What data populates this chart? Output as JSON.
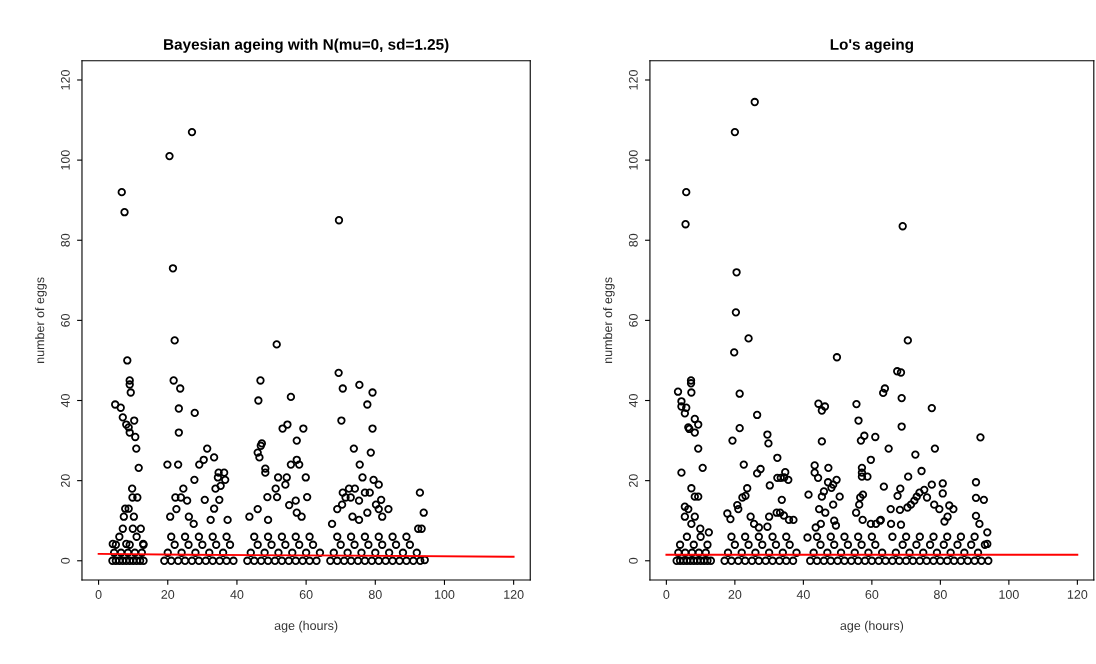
{
  "chart_data": [
    {
      "type": "scatter",
      "title": "Bayesian ageing with N(mu=0, sd=1.25)",
      "xlabel": "age (hours)",
      "ylabel": "number of eggs",
      "xlim": [
        -4.8,
        124.8
      ],
      "ylim": [
        -4.8,
        124.8
      ],
      "xticks": [
        0,
        20,
        40,
        60,
        80,
        100,
        120
      ],
      "yticks": [
        0,
        20,
        40,
        60,
        80,
        100,
        120
      ],
      "grid": false,
      "series": [
        {
          "marker": "circle",
          "color": "#000000",
          "x": [
            6.7,
            7.5,
            20.5,
            21.5,
            22,
            27,
            69.5,
            51.5,
            8.3,
            9,
            9,
            9.3,
            4.8,
            6.4,
            7,
            8,
            8.7,
            9,
            10.3,
            10.6,
            10.9,
            11.6,
            9.7,
            9.8,
            11.2,
            7.7,
            8.7,
            7.3,
            10.2,
            7,
            9.9,
            12.2,
            4.1,
            8,
            12.9,
            21.7,
            23.6,
            23.2,
            23.2,
            27.8,
            19.9,
            23,
            31.4,
            30.4,
            29.1,
            33.4,
            24.5,
            22.2,
            23.8,
            22.5,
            25.6,
            26.1,
            20.7,
            27.7,
            34.7,
            36.3,
            34.5,
            36.6,
            33.8,
            35.3,
            30.7,
            34.9,
            33.4,
            37.3,
            32.4,
            27.5,
            46.2,
            46.8,
            46,
            46.9,
            47.2,
            46.5,
            48.2,
            48.2,
            55.6,
            53.2,
            54.6,
            59.2,
            57.3,
            55.6,
            58,
            57.3,
            51.9,
            54.4,
            54,
            59.9,
            51.2,
            48.8,
            51.6,
            60.3,
            55.1,
            57,
            43.6,
            46,
            49,
            57.3,
            58.7,
            69.4,
            70.6,
            70.2,
            75.4,
            79.2,
            77.7,
            79.2,
            73.8,
            78.7,
            75.5,
            76.3,
            79.5,
            81,
            70.6,
            72.4,
            74.1,
            77,
            78.4,
            71.4,
            72.9,
            75.3,
            81.7,
            83.8,
            81,
            80.2,
            69,
            70.4,
            73.4,
            77.7,
            82,
            67.5,
            75.3,
            92.9,
            94,
            92.4,
            93.4,
            94.3,
            4,
            5,
            6,
            7,
            8,
            9,
            10,
            11,
            12,
            13,
            19,
            21,
            23,
            25,
            27,
            29,
            31,
            33,
            35,
            37,
            39,
            43,
            45,
            47,
            49,
            51,
            53,
            55,
            57,
            59,
            61,
            63,
            67,
            69,
            71,
            73,
            75,
            77,
            79,
            81,
            83,
            85,
            87,
            89,
            91,
            93,
            4.5,
            6.5,
            8.5,
            10.5,
            12.5,
            20,
            24,
            28,
            32,
            36,
            44,
            48,
            52,
            56,
            60,
            64,
            68,
            72,
            76,
            80,
            84,
            88,
            92,
            5,
            9,
            13,
            22,
            26,
            30,
            34,
            38,
            46,
            50,
            54,
            58,
            62,
            70,
            74,
            78,
            82,
            86,
            90,
            6,
            11,
            21,
            25,
            29,
            33,
            37,
            45,
            49,
            53,
            57,
            61,
            69,
            73,
            77,
            81,
            85,
            89
          ],
          "values": [
            92,
            87,
            101,
            73,
            55,
            107,
            85,
            54,
            50,
            45,
            44,
            42,
            39,
            38.2,
            35.8,
            34,
            33.3,
            32,
            35,
            30.9,
            28,
            23.2,
            18,
            15.8,
            15.8,
            13,
            13,
            11,
            11,
            8,
            8,
            8,
            4.2,
            4.2,
            4.2,
            45,
            43,
            38,
            32,
            36.9,
            24,
            24,
            28,
            25.2,
            24,
            25.8,
            18,
            15.8,
            15.8,
            12.9,
            15,
            11,
            11,
            20.2,
            22,
            22,
            20.8,
            20.2,
            18,
            18.7,
            15.2,
            15.2,
            13,
            10.2,
            10.2,
            9.2,
            40,
            45,
            27,
            28.7,
            29.3,
            25.8,
            23,
            22,
            40.9,
            33,
            34,
            33,
            30,
            24,
            24,
            25.2,
            20.8,
            20.8,
            19,
            20.8,
            18,
            15.9,
            15.9,
            15.9,
            13.9,
            15,
            11,
            12.9,
            10.2,
            12,
            11,
            46.9,
            43,
            35,
            43.9,
            42,
            39,
            33,
            28,
            27,
            24,
            20.8,
            20.2,
            19,
            17,
            18,
            18,
            17,
            17,
            15.8,
            15.8,
            15,
            15.2,
            12.9,
            12.9,
            14,
            12.9,
            14,
            11,
            12,
            11,
            9.2,
            10.2,
            17,
            12,
            8,
            8,
            0.2,
            0,
            0,
            0,
            0,
            0,
            0,
            0,
            0,
            0,
            0,
            0,
            0,
            0,
            0,
            0,
            0,
            0,
            0,
            0,
            0,
            0,
            0,
            0,
            0,
            0,
            0,
            0,
            0,
            0,
            0,
            0,
            0,
            0,
            0,
            0,
            0,
            0,
            0,
            0,
            0,
            0,
            0,
            0,
            0,
            0,
            0,
            2,
            2,
            2,
            2,
            2,
            2,
            2,
            2,
            2,
            2,
            2,
            2,
            2,
            2,
            2,
            2,
            2,
            2,
            2,
            2,
            2,
            2,
            2,
            4,
            4,
            4,
            4,
            4,
            4,
            4,
            4,
            4,
            4,
            4,
            4,
            4,
            4,
            4,
            4,
            4,
            4,
            4,
            6,
            6,
            6,
            6,
            6,
            6,
            6,
            6,
            6,
            6,
            6,
            6,
            6,
            6,
            6,
            6,
            6,
            6
          ]
        },
        {
          "type": "line",
          "marker": "none",
          "color": "#ff0000",
          "x": [
            0,
            26,
            74,
            120
          ],
          "values": [
            1.7,
            1.5,
            1.3,
            1.0
          ]
        }
      ]
    },
    {
      "type": "scatter",
      "title": "Lo's ageing",
      "xlabel": "age (hours)",
      "ylabel": "number of eggs",
      "xlim": [
        -4.8,
        124.8
      ],
      "ylim": [
        -4.8,
        124.8
      ],
      "xticks": [
        0,
        20,
        40,
        60,
        80,
        100,
        120
      ],
      "yticks": [
        0,
        20,
        40,
        60,
        80,
        100,
        120
      ],
      "grid": false,
      "series": [
        {
          "marker": "circle",
          "color": "#000000",
          "x": [
            5.8,
            5.6,
            20,
            25.8,
            20.5,
            20.3,
            19.8,
            24,
            69,
            70.5,
            49.8,
            68.5,
            3.4,
            7.2,
            7.2,
            7.3,
            4.4,
            4.4,
            5.8,
            5.4,
            8.3,
            9.3,
            6.4,
            6.7,
            8.3,
            9.3,
            10.6,
            4.4,
            7.3,
            8.3,
            9.3,
            5.4,
            6.4,
            5.4,
            8.3,
            7.3,
            9.9,
            12.4,
            21.4,
            21.4,
            26.5,
            19.3,
            22.6,
            26.5,
            27.5,
            20.7,
            22.2,
            23.1,
            23.6,
            21,
            17.8,
            18.7,
            24.6,
            25.6,
            27,
            29.5,
            29.8,
            32.4,
            30.2,
            32.4,
            33.4,
            34.7,
            34.4,
            35.6,
            33.7,
            32.2,
            33.2,
            30,
            29.5,
            34.3,
            35.8,
            37.1,
            44.4,
            45.4,
            46.3,
            45.4,
            43.3,
            43.3,
            44.3,
            47.3,
            41.5,
            45.4,
            46,
            47.2,
            48.2,
            48.7,
            49.7,
            50.6,
            44.6,
            48.7,
            46.4,
            45.1,
            49,
            49.5,
            41.2,
            43.6,
            55.5,
            56.1,
            57.8,
            56.8,
            61,
            59.7,
            57.1,
            57.1,
            57.1,
            58.7,
            56.6,
            57.4,
            56.3,
            55.4,
            57.3,
            59.7,
            61.2,
            62.6,
            63.3,
            63.8,
            67.4,
            68.7,
            68.7,
            64.9,
            72.7,
            70.6,
            74.5,
            63.5,
            67.5,
            68.3,
            65.5,
            68.2,
            70.4,
            71.4,
            72.4,
            73.1,
            73.9,
            75.3,
            76.1,
            77.5,
            78.4,
            77.5,
            80.7,
            80.7,
            78.2,
            79.7,
            82.6,
            83.8,
            82.1,
            81.2,
            62.4,
            65.6,
            68.5,
            91.7,
            90.4,
            90.4,
            92.7,
            90.4,
            91.4,
            93.7,
            93.7,
            3,
            4,
            5,
            6,
            7,
            8,
            9,
            10,
            11,
            12,
            13,
            17,
            19,
            21,
            23,
            25,
            27,
            29,
            31,
            33,
            35,
            37,
            42,
            44,
            46,
            48,
            50,
            52,
            54,
            56,
            58,
            60,
            62,
            64,
            66,
            68,
            70,
            72,
            74,
            76,
            78,
            80,
            82,
            84,
            86,
            88,
            90,
            92,
            94,
            3.5,
            5.5,
            7.5,
            9.5,
            11.5,
            18,
            22,
            26,
            30,
            34,
            38,
            43,
            47,
            51,
            55,
            59,
            63,
            67,
            71,
            75,
            79,
            83,
            87,
            91,
            4,
            8,
            12,
            20,
            24,
            28,
            32,
            36,
            45,
            49,
            53,
            57,
            61,
            69,
            73,
            77,
            81,
            85,
            89,
            93,
            6,
            10,
            19,
            23,
            27,
            31,
            35,
            44,
            48,
            52,
            56,
            60,
            66,
            70,
            74,
            78,
            82,
            86,
            90
          ],
          "values": [
            92,
            84,
            107,
            114.5,
            72,
            62,
            52,
            55.5,
            83.5,
            55,
            50.8,
            47,
            42.2,
            45,
            44.3,
            42,
            39.8,
            38.5,
            38.2,
            36.8,
            35.4,
            34,
            33.3,
            32.9,
            32,
            28,
            23.2,
            22,
            18.1,
            16,
            16,
            13.5,
            12.9,
            11,
            11,
            9.2,
            8,
            7.1,
            41.7,
            33.1,
            36.4,
            30,
            24,
            21.8,
            22.9,
            13.9,
            15.8,
            16.2,
            18.1,
            12.9,
            11.8,
            10.4,
            11,
            9.2,
            8.3,
            31.5,
            29.3,
            25.7,
            18.8,
            20.7,
            20.7,
            22.1,
            20.8,
            20.2,
            15.2,
            12,
            12,
            11,
            8.5,
            11.3,
            10.2,
            10.2,
            39.2,
            37.5,
            38.5,
            29.8,
            23.8,
            22,
            20.7,
            23.2,
            16.5,
            16,
            17.3,
            19.6,
            18.2,
            19,
            20.2,
            16,
            12.9,
            14,
            12,
            9.2,
            10,
            8.8,
            5.8,
            8.3,
            39.1,
            35,
            31.2,
            30,
            30.9,
            25.2,
            23.2,
            22,
            21,
            21,
            15.8,
            16.5,
            14,
            12,
            10.2,
            9.2,
            9.2,
            10.2,
            41.9,
            43,
            47.3,
            40.6,
            33.5,
            28,
            26.5,
            21,
            22.4,
            18.5,
            16.2,
            18,
            12.9,
            12.7,
            13.3,
            14,
            15,
            16,
            17,
            17.7,
            15.8,
            38.1,
            28,
            19,
            19.3,
            16.8,
            14,
            12.9,
            13.8,
            12.9,
            11,
            9.8,
            10,
            9.2,
            9,
            30.8,
            19.6,
            15.7,
            15.2,
            11.2,
            9.2,
            7.1,
            4.2,
            0,
            0,
            0,
            0,
            0,
            0,
            0,
            0,
            0,
            0,
            0,
            0,
            0,
            0,
            0,
            0,
            0,
            0,
            0,
            0,
            0,
            0,
            0,
            0,
            0,
            0,
            0,
            0,
            0,
            0,
            0,
            0,
            0,
            0,
            0,
            0,
            0,
            0,
            0,
            0,
            0,
            0,
            0,
            0,
            0,
            0,
            0,
            0,
            0,
            2,
            2,
            2,
            2,
            2,
            2,
            2,
            2,
            2,
            2,
            2,
            2,
            2,
            2,
            2,
            2,
            2,
            2,
            2,
            2,
            2,
            2,
            2,
            2,
            4,
            4,
            4,
            4,
            4,
            4,
            4,
            4,
            4,
            4,
            4,
            4,
            4,
            4,
            4,
            4,
            4,
            4,
            4,
            4,
            6,
            6,
            6,
            6,
            6,
            6,
            6,
            6,
            6,
            6,
            6,
            6,
            6,
            6,
            6,
            6,
            6,
            6,
            6
          ]
        },
        {
          "type": "line",
          "marker": "none",
          "color": "#ff0000",
          "x": [
            0,
            120
          ],
          "values": [
            1.5,
            1.5
          ]
        }
      ]
    }
  ]
}
